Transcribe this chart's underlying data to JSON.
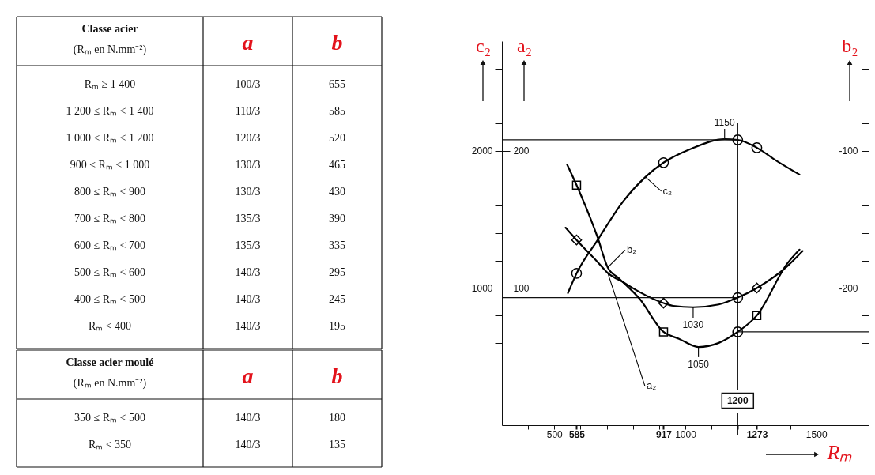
{
  "chart_data": [
    {
      "type": "other",
      "title": "Classe acier",
      "subtitle": "(Rₘ en N.mm⁻²)",
      "categories": [
        "Rₘ ≥ 1 400",
        "1 200 ≤ Rₘ < 1 400",
        "1 000 ≤ Rₘ < 1 200",
        "900 ≤ Rₘ < 1 000",
        "800 ≤ Rₘ < 900",
        "700 ≤ Rₘ < 800",
        "600 ≤ Rₘ < 700",
        "500 ≤ Rₘ < 600",
        "400 ≤ Rₘ < 500",
        "Rₘ < 400"
      ],
      "series": [
        {
          "name": "a",
          "values": [
            null,
            null,
            null,
            null,
            null,
            null,
            null,
            null,
            null,
            null
          ],
          "value_labels": [
            "100/3",
            "110/3",
            "120/3",
            "130/3",
            "130/3",
            "135/3",
            "135/3",
            "140/3",
            "140/3",
            "140/3"
          ]
        },
        {
          "name": "b",
          "values": [
            655,
            585,
            520,
            465,
            430,
            390,
            335,
            295,
            245,
            195
          ]
        }
      ],
      "data_labels": true
    },
    {
      "type": "other",
      "title": "Classe acier moulé",
      "subtitle": "(Rₘ en N.mm⁻²)",
      "categories": [
        "350 ≤ Rₘ < 500",
        "Rₘ < 350"
      ],
      "series": [
        {
          "name": "a",
          "values": [
            null,
            null
          ],
          "value_labels": [
            "140/3",
            "140/3"
          ]
        },
        {
          "name": "b",
          "values": [
            180,
            135
          ]
        }
      ],
      "data_labels": true
    },
    {
      "type": "line",
      "xlabel": "Rₘ",
      "ylabel": "c₂",
      "y3label": "a₂",
      "y2label": "b₂",
      "xlim": [
        300,
        1700
      ],
      "xticks": [
        {
          "value": 400,
          "label": null
        },
        500,
        585,
        {
          "value": 600,
          "label": null
        },
        {
          "value": 700,
          "label": null
        },
        {
          "value": 800,
          "label": null
        },
        {
          "value": 900,
          "label": null
        },
        917,
        1000,
        {
          "value": 1100,
          "label": null
        },
        {
          "value": 1200,
          "label": null
        },
        1273,
        {
          "value": 1300,
          "label": null
        },
        {
          "value": 1400,
          "label": null
        },
        1500,
        {
          "value": 1600,
          "label": null
        }
      ],
      "ylim": [
        0,
        2800
      ],
      "yticks": [
        {
          "value": 200,
          "label": null
        },
        {
          "value": 400,
          "label": null
        },
        {
          "value": 600,
          "label": null
        },
        {
          "value": 800,
          "label": null
        },
        1000,
        {
          "value": 1200,
          "label": null
        },
        {
          "value": 1400,
          "label": null
        },
        {
          "value": 1600,
          "label": null
        },
        {
          "value": 1800,
          "label": null
        },
        2000,
        {
          "value": 2200,
          "label": null
        },
        {
          "value": 2400,
          "label": null
        },
        {
          "value": 2600,
          "label": null
        }
      ],
      "y3lim": [
        0,
        280
      ],
      "y3ticks": [
        100,
        200
      ],
      "y2lim": [
        -300,
        -20
      ],
      "y2ticks": [
        {
          "value": -280,
          "label": null
        },
        {
          "value": -260,
          "label": null
        },
        {
          "value": -240,
          "label": null
        },
        {
          "value": -220,
          "label": null
        },
        -200,
        {
          "value": -180,
          "label": null
        },
        {
          "value": -160,
          "label": null
        },
        {
          "value": -140,
          "label": null
        },
        {
          "value": -120,
          "label": null
        },
        -100,
        {
          "value": -80,
          "label": null
        },
        {
          "value": -60,
          "label": null
        },
        {
          "value": -40,
          "label": null
        }
      ],
      "series": [
        {
          "name": "c₂",
          "type": "line",
          "marker": "none",
          "color": "#000000",
          "x": [
            552,
            585,
            665,
            765,
            848,
            917,
            1024,
            1150,
            1200,
            1273,
            1350,
            1436
          ],
          "values": [
            963,
            1107,
            1349,
            1637,
            1810,
            1914,
            2017,
            2085,
            2080,
            2023,
            1925,
            1827
          ]
        },
        {
          "name": "a₂",
          "type": "line",
          "marker": "none",
          "axis": "y3",
          "color": "#000000",
          "x": [
            543,
            585,
            665,
            704,
            765,
            826,
            917,
            954,
            1030,
            1128,
            1200,
            1273,
            1390,
            1448
          ],
          "values": [
            144,
            135,
            119,
            111,
            104,
            97,
            89,
            87,
            86,
            88,
            93,
            100,
            116,
            127
          ]
        },
        {
          "name": "b₂",
          "type": "line",
          "marker": "none",
          "axis": "y2",
          "color": "#000000",
          "x": [
            549,
            585,
            665,
            704,
            747,
            826,
            917,
            976,
            1050,
            1128,
            1200,
            1273,
            1390,
            1436
          ],
          "values": [
            -110,
            -125,
            -163,
            -185,
            -193,
            -208,
            -232,
            -237,
            -243,
            -240,
            -232,
            -220,
            -182,
            -172
          ]
        },
        {
          "type": "scatter",
          "marker": "circle",
          "color": "#000000",
          "x": [
            585,
            917,
            1200,
            1273
          ],
          "values": [
            1107,
            1914,
            2080,
            2023
          ]
        },
        {
          "type": "scatter",
          "marker": "diamond",
          "axis": "y3",
          "color": "#000000",
          "x": [
            585,
            917,
            1273
          ],
          "values": [
            135,
            89,
            100
          ]
        },
        {
          "type": "scatter",
          "marker": "square",
          "axis": "y2",
          "color": "#000000",
          "x": [
            585,
            917,
            1273
          ],
          "values": [
            -125,
            -232,
            -220
          ]
        },
        {
          "type": "scatter",
          "marker": "circle",
          "axis": "y3",
          "color": "#000000",
          "x": [
            1200
          ],
          "values": [
            93
          ]
        },
        {
          "type": "scatter",
          "marker": "circle",
          "axis": "y2",
          "color": "#000000",
          "x": [
            1200
          ],
          "values": [
            -232
          ]
        }
      ],
      "ref_lines": [
        {
          "axis": "x",
          "value": 1200,
          "label": "1200"
        },
        {
          "axis": "y",
          "value": 2080
        },
        {
          "axis": "y3",
          "value": 93
        },
        {
          "axis": "y2",
          "value": -232
        }
      ],
      "annotations": [
        {
          "text": "1150",
          "x": 1150,
          "y": 2085
        },
        {
          "text": "1030",
          "x": 1030,
          "y": 859
        },
        {
          "text": "1050",
          "x": 1050,
          "y": 571
        }
      ]
    }
  ]
}
